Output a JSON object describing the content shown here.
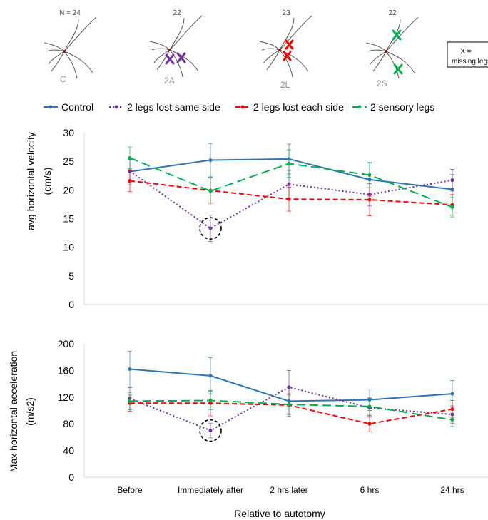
{
  "spider_panels": [
    {
      "n_label": "N = 24",
      "group_label": "C",
      "x_marks_color": "",
      "x_marks": []
    },
    {
      "n_label": "22",
      "group_label": "2A",
      "x_marks_color": "#7030a0"
    },
    {
      "n_label": "23",
      "group_label": "2L",
      "x_marks_color": "#ff0000"
    },
    {
      "n_label": "22",
      "group_label": "2S",
      "x_marks_color": "#00b050"
    }
  ],
  "key_box": {
    "line1": "X =",
    "line2": "missing legs"
  },
  "legend": [
    {
      "name": "Control",
      "color": "#2e75b6",
      "dash": "solid"
    },
    {
      "name": "2 legs lost same side",
      "color": "#7030a0",
      "dash": "dot"
    },
    {
      "name": "2 legs lost each side",
      "color": "#ff0000",
      "dash": "dash"
    },
    {
      "name": "2 sensory legs",
      "color": "#00b050",
      "dash": "longdash"
    }
  ],
  "x_axis_title": "Relative to autotomy",
  "chart_data": [
    {
      "type": "line",
      "ylabel_line1": "avg horizontal velocity",
      "ylabel_line2": "(cm/s)",
      "categories": [
        "Before",
        "Immediately after",
        "2 hrs later",
        "6 hrs",
        "24 hrs"
      ],
      "ylim": [
        0,
        30
      ],
      "yticks": [
        0,
        5,
        10,
        15,
        20,
        25,
        30
      ],
      "series": [
        {
          "name": "Control",
          "color": "#2e75b6",
          "values": [
            23.2,
            25.2,
            25.4,
            21.8,
            20.1
          ],
          "err": [
            2.3,
            2.9,
            2.6,
            2.9,
            2.6
          ]
        },
        {
          "name": "2 legs lost same side",
          "color": "#7030a0",
          "values": [
            23.3,
            13.3,
            21.0,
            19.2,
            21.7
          ],
          "err": [
            2.0,
            2.3,
            2.4,
            2.0,
            1.9
          ]
        },
        {
          "name": "2 legs lost each side",
          "color": "#ff0000",
          "values": [
            21.6,
            19.9,
            18.4,
            18.3,
            17.4
          ],
          "err": [
            1.9,
            2.2,
            2.1,
            2.8,
            1.8
          ]
        },
        {
          "name": "2 sensory legs",
          "color": "#00b050",
          "values": [
            25.6,
            19.8,
            24.6,
            22.6,
            17.0
          ],
          "err": [
            1.9,
            2.4,
            2.4,
            2.2,
            1.7
          ]
        }
      ],
      "highlight": {
        "category": "Immediately after",
        "value": 13.3
      }
    },
    {
      "type": "line",
      "ylabel_line1": "Max horizontal acceleration",
      "ylabel_line2": "(m/s2)",
      "categories": [
        "Before",
        "Immediately after",
        "2 hrs later",
        "6 hrs",
        "24 hrs"
      ],
      "ylim": [
        0,
        200
      ],
      "yticks": [
        0,
        40,
        80,
        120,
        160,
        200
      ],
      "series": [
        {
          "name": "Control",
          "color": "#2e75b6",
          "values": [
            162,
            152,
            114,
            116,
            125
          ],
          "err": [
            27,
            27,
            20,
            16,
            20
          ]
        },
        {
          "name": "2 legs lost same side",
          "color": "#7030a0",
          "values": [
            118,
            70,
            135,
            104,
            94
          ],
          "err": [
            16,
            11,
            25,
            14,
            13
          ]
        },
        {
          "name": "2 legs lost each side",
          "color": "#ff0000",
          "values": [
            111,
            111,
            108,
            80,
            102
          ],
          "err": [
            12,
            19,
            17,
            12,
            13
          ]
        },
        {
          "name": "2 sensory legs",
          "color": "#00b050",
          "values": [
            114,
            115,
            109,
            106,
            86
          ],
          "err": [
            13,
            14,
            14,
            13,
            10
          ]
        }
      ],
      "highlight": {
        "category": "Immediately after",
        "value": 70
      }
    }
  ]
}
